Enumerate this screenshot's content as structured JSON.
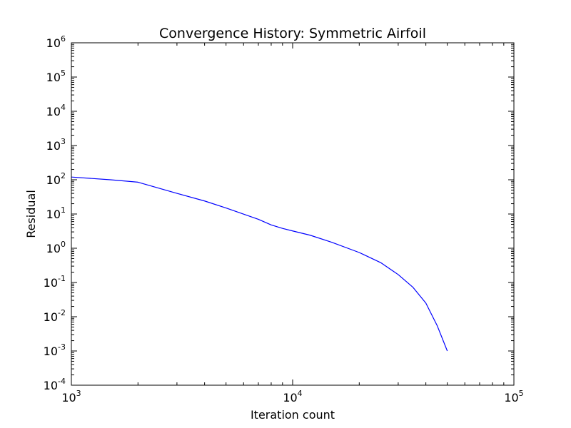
{
  "chart_data": {
    "type": "line",
    "title": "Convergence History: Symmetric Airfoil",
    "xlabel": "Iteration count",
    "ylabel": "Residual",
    "x_scale": "log",
    "y_scale": "log",
    "xlim": [
      1000,
      100000
    ],
    "ylim": [
      0.0001,
      1000000
    ],
    "grid": false,
    "x_ticks": [
      {
        "base": "10",
        "exp": "3",
        "value": 1000
      },
      {
        "base": "10",
        "exp": "4",
        "value": 10000
      },
      {
        "base": "10",
        "exp": "5",
        "value": 100000
      }
    ],
    "y_ticks": [
      {
        "base": "10",
        "exp": "-4",
        "value": 0.0001
      },
      {
        "base": "10",
        "exp": "-3",
        "value": 0.001
      },
      {
        "base": "10",
        "exp": "-2",
        "value": 0.01
      },
      {
        "base": "10",
        "exp": "-1",
        "value": 0.1
      },
      {
        "base": "10",
        "exp": "0",
        "value": 1
      },
      {
        "base": "10",
        "exp": "1",
        "value": 10
      },
      {
        "base": "10",
        "exp": "2",
        "value": 100
      },
      {
        "base": "10",
        "exp": "3",
        "value": 1000
      },
      {
        "base": "10",
        "exp": "4",
        "value": 10000
      },
      {
        "base": "10",
        "exp": "5",
        "value": 100000
      },
      {
        "base": "10",
        "exp": "6",
        "value": 1000000
      }
    ],
    "series": [
      {
        "color": "#0000ff",
        "x": [
          1000,
          1500,
          2000,
          3000,
          4000,
          5000,
          7000,
          8000,
          9000,
          10000,
          12000,
          15000,
          20000,
          25000,
          30000,
          35000,
          40000,
          45000,
          50000
        ],
        "y": [
          120,
          100,
          85,
          40,
          24,
          15,
          7,
          4.8,
          3.8,
          3.2,
          2.4,
          1.5,
          0.75,
          0.38,
          0.17,
          0.072,
          0.025,
          0.0055,
          0.001
        ]
      }
    ]
  }
}
